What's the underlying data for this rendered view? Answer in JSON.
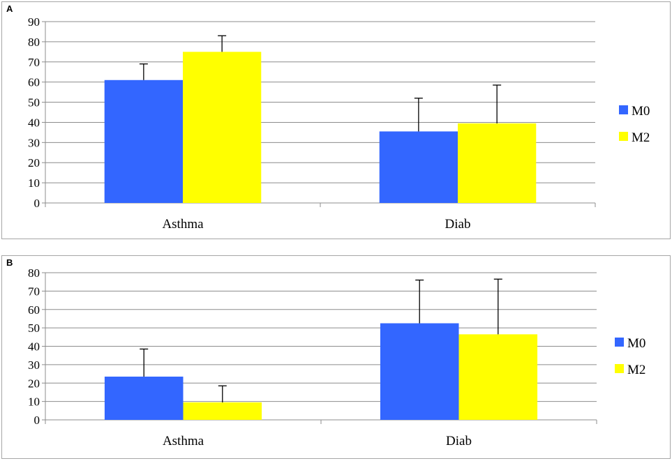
{
  "chart_data": [
    {
      "type": "bar",
      "panel_label": "A",
      "categories": [
        "Asthma",
        "Diab"
      ],
      "series": [
        {
          "name": "M0",
          "values": [
            61,
            35.5
          ],
          "errors": [
            8,
            16.5
          ]
        },
        {
          "name": "M2",
          "values": [
            75,
            39.5
          ],
          "errors": [
            8,
            19
          ]
        }
      ],
      "ylim": [
        0,
        90
      ],
      "yticks": [
        0,
        10,
        20,
        30,
        40,
        50,
        60,
        70,
        80,
        90
      ],
      "grid": true,
      "legend": "right",
      "colors": {
        "M0": "#3366ff",
        "M2": "#ffff00"
      }
    },
    {
      "type": "bar",
      "panel_label": "B",
      "categories": [
        "Asthma",
        "Diab"
      ],
      "series": [
        {
          "name": "M0",
          "values": [
            23.5,
            52.5
          ],
          "errors": [
            15,
            23.5
          ]
        },
        {
          "name": "M2",
          "values": [
            9.5,
            46.5
          ],
          "errors": [
            9,
            30
          ]
        }
      ],
      "ylim": [
        0,
        80
      ],
      "yticks": [
        0,
        10,
        20,
        30,
        40,
        50,
        60,
        70,
        80
      ],
      "grid": true,
      "legend": "right",
      "colors": {
        "M0": "#3366ff",
        "M2": "#ffff00"
      }
    }
  ]
}
